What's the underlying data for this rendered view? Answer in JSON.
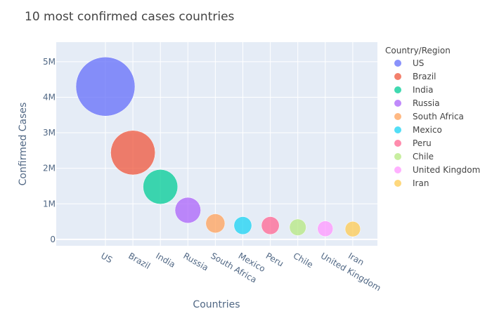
{
  "chart_data": {
    "type": "scatter",
    "title": "10 most confirmed cases countries",
    "xlabel": "Countries",
    "ylabel": "Confirmed Cases",
    "categories": [
      "US",
      "Brazil",
      "India",
      "Russia",
      "South Africa",
      "Mexico",
      "Peru",
      "Chile",
      "United Kingdom",
      "Iran"
    ],
    "values": [
      4300000,
      2440000,
      1480000,
      820000,
      450000,
      390000,
      390000,
      340000,
      300000,
      290000
    ],
    "ylim": [
      -180000,
      5550000
    ],
    "yticks": [
      0,
      1000000,
      2000000,
      3000000,
      4000000,
      5000000
    ],
    "ytick_labels": [
      "0",
      "1M",
      "2M",
      "3M",
      "4M",
      "5M"
    ],
    "bubble_size_encodes": "Confirmed Cases",
    "legend_title": "Country/Region",
    "legend_position": "right",
    "grid": true,
    "colors": [
      "#636efa",
      "#EF553B",
      "#00cc96",
      "#ab63fa",
      "#FFA15A",
      "#19d3f3",
      "#FF6692",
      "#B6E880",
      "#FF97FF",
      "#FECB52"
    ],
    "plot_background": "#E5ECF6"
  }
}
